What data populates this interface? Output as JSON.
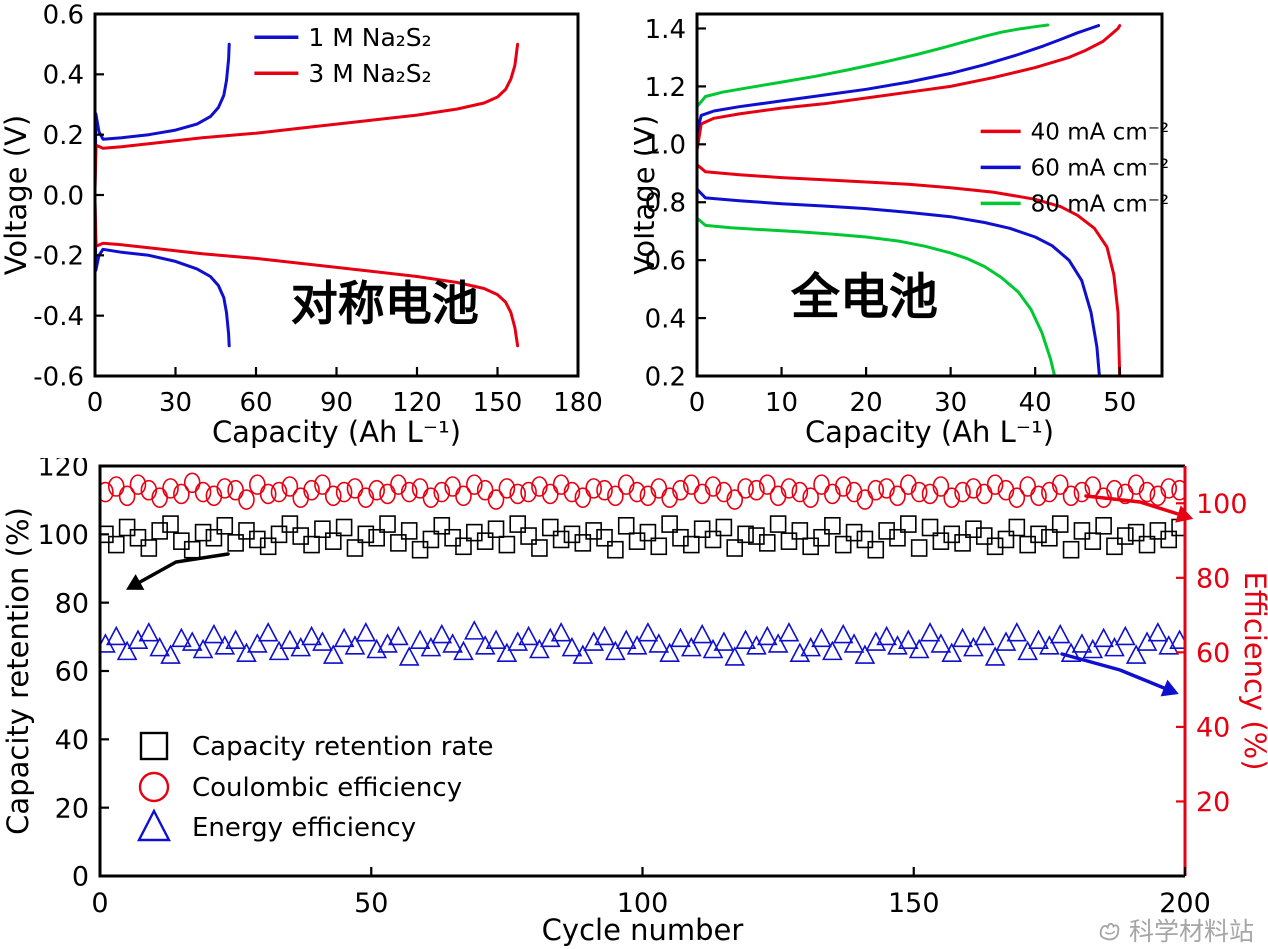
{
  "watermark": {
    "text": "科学材料站"
  },
  "colors": {
    "red": "#e60012",
    "blue": "#0f0fd0",
    "green": "#00c832",
    "black": "#000000",
    "watermark_gray": "#a6a6a6"
  },
  "chart_data": [
    {
      "id": "symmetric-cell",
      "type": "line",
      "annotation": "对称电池",
      "xlabel": "Capacity (Ah L⁻¹)",
      "ylabel": "Voltage (V)",
      "xlim": [
        0,
        180
      ],
      "xticks": [
        "0",
        "30",
        "60",
        "90",
        "120",
        "150",
        "180"
      ],
      "ylim": [
        -0.6,
        0.6
      ],
      "yticks": [
        "-0.6",
        "-0.4",
        "-0.2",
        "0.0",
        "0.2",
        "0.4",
        "0.6"
      ],
      "grid": false,
      "legend_position": "top-center",
      "legend_entries": [
        {
          "label": "1 M Na₂S₂",
          "color": "#0f0fd0"
        },
        {
          "label": "3 M Na₂S₂",
          "color": "#e60012"
        }
      ],
      "series": [
        {
          "name": "1 M Na2S2 charge",
          "color": "#0f0fd0",
          "x": [
            0,
            0.3,
            1.5,
            3,
            10,
            20,
            30,
            38,
            43,
            46,
            48,
            49,
            49.8,
            50
          ],
          "y": [
            0.02,
            0.27,
            0.21,
            0.185,
            0.19,
            0.2,
            0.215,
            0.235,
            0.26,
            0.29,
            0.33,
            0.38,
            0.45,
            0.5
          ]
        },
        {
          "name": "1 M Na2S2 discharge",
          "color": "#0f0fd0",
          "x": [
            0,
            0.3,
            1.5,
            3,
            10,
            20,
            30,
            38,
            43,
            46,
            48,
            49,
            49.8,
            50
          ],
          "y": [
            -0.02,
            -0.25,
            -0.2,
            -0.18,
            -0.19,
            -0.2,
            -0.22,
            -0.245,
            -0.27,
            -0.3,
            -0.34,
            -0.39,
            -0.46,
            -0.5
          ]
        },
        {
          "name": "3 M Na2S2 charge",
          "color": "#e60012",
          "x": [
            0,
            0.4,
            3,
            10,
            20,
            40,
            60,
            80,
            100,
            120,
            135,
            145,
            150,
            153,
            155,
            156.5,
            157.5
          ],
          "y": [
            0.02,
            0.165,
            0.155,
            0.16,
            0.17,
            0.19,
            0.205,
            0.225,
            0.245,
            0.265,
            0.285,
            0.305,
            0.325,
            0.35,
            0.385,
            0.43,
            0.5
          ]
        },
        {
          "name": "3 M Na2S2 discharge",
          "color": "#e60012",
          "x": [
            0,
            0.4,
            3,
            10,
            20,
            40,
            60,
            80,
            100,
            120,
            135,
            145,
            150,
            153,
            155,
            156.5,
            157.5
          ],
          "y": [
            -0.02,
            -0.17,
            -0.16,
            -0.165,
            -0.175,
            -0.195,
            -0.21,
            -0.23,
            -0.25,
            -0.27,
            -0.29,
            -0.31,
            -0.33,
            -0.355,
            -0.39,
            -0.44,
            -0.5
          ]
        }
      ]
    },
    {
      "id": "full-cell",
      "type": "line",
      "annotation": "全电池",
      "xlabel": "Capacity (Ah L⁻¹)",
      "ylabel": "Voltage (V)",
      "xlim": [
        0,
        55
      ],
      "xticks": [
        "0",
        "10",
        "20",
        "30",
        "40",
        "50"
      ],
      "ylim": [
        0.2,
        1.45
      ],
      "yticks": [
        "0.2",
        "0.4",
        "0.6",
        "0.8",
        "1.0",
        "1.2",
        "1.4"
      ],
      "grid": false,
      "legend_position": "middle-right",
      "legend_entries": [
        {
          "label": "40 mA cm⁻²",
          "color": "#e60012"
        },
        {
          "label": "60 mA cm⁻²",
          "color": "#0f0fd0"
        },
        {
          "label": "80 mA cm⁻²",
          "color": "#00c832"
        }
      ],
      "series": [
        {
          "name": "40 mA charge",
          "color": "#e60012",
          "x": [
            0,
            0.5,
            2,
            5,
            10,
            15,
            20,
            25,
            30,
            35,
            40,
            44,
            46,
            48,
            49,
            49.8,
            50
          ],
          "y": [
            0.98,
            1.07,
            1.09,
            1.105,
            1.125,
            1.14,
            1.16,
            1.18,
            1.2,
            1.23,
            1.265,
            1.3,
            1.325,
            1.355,
            1.38,
            1.4,
            1.41
          ]
        },
        {
          "name": "40 mA discharge",
          "color": "#e60012",
          "x": [
            0,
            1,
            5,
            10,
            15,
            20,
            25,
            30,
            35,
            40,
            43,
            45,
            47,
            48.5,
            49.3,
            49.8,
            50
          ],
          "y": [
            0.93,
            0.905,
            0.895,
            0.885,
            0.878,
            0.87,
            0.862,
            0.85,
            0.835,
            0.81,
            0.785,
            0.755,
            0.71,
            0.645,
            0.55,
            0.42,
            0.2
          ]
        },
        {
          "name": "60 mA charge",
          "color": "#0f0fd0",
          "x": [
            0,
            0.5,
            2,
            5,
            10,
            15,
            20,
            25,
            30,
            34,
            38,
            41,
            43,
            45,
            46.5,
            47.5
          ],
          "y": [
            1.04,
            1.1,
            1.115,
            1.13,
            1.15,
            1.17,
            1.19,
            1.215,
            1.245,
            1.275,
            1.31,
            1.34,
            1.362,
            1.385,
            1.4,
            1.41
          ]
        },
        {
          "name": "60 mA discharge",
          "color": "#0f0fd0",
          "x": [
            0,
            1,
            5,
            10,
            15,
            20,
            25,
            30,
            34,
            37,
            40,
            42,
            44,
            45.5,
            46.6,
            47.3,
            47.6
          ],
          "y": [
            0.845,
            0.815,
            0.805,
            0.795,
            0.787,
            0.778,
            0.765,
            0.75,
            0.73,
            0.71,
            0.68,
            0.65,
            0.6,
            0.53,
            0.42,
            0.3,
            0.2
          ]
        },
        {
          "name": "80 mA charge",
          "color": "#00c832",
          "x": [
            0,
            1,
            3,
            6,
            10,
            14,
            18,
            22,
            26,
            29,
            32,
            34,
            36,
            38,
            40,
            41.5
          ],
          "y": [
            1.13,
            1.165,
            1.18,
            1.195,
            1.215,
            1.235,
            1.258,
            1.283,
            1.31,
            1.333,
            1.357,
            1.373,
            1.387,
            1.398,
            1.406,
            1.412
          ]
        },
        {
          "name": "80 mA discharge",
          "color": "#00c832",
          "x": [
            0,
            1,
            4,
            8,
            12,
            16,
            20,
            24,
            27,
            30,
            32,
            34,
            36,
            38,
            39.5,
            40.8,
            41.8,
            42.3
          ],
          "y": [
            0.745,
            0.72,
            0.712,
            0.705,
            0.698,
            0.69,
            0.68,
            0.665,
            0.648,
            0.625,
            0.605,
            0.578,
            0.54,
            0.49,
            0.43,
            0.35,
            0.26,
            0.2
          ]
        }
      ]
    },
    {
      "id": "cycling",
      "type": "scatter",
      "dual_axis": true,
      "xlabel": "Cycle number",
      "ylabel_left": "Capacity retention (%)",
      "ylabel_right": "Efficiency (%)",
      "right_color": "#e60012",
      "xlim": [
        0,
        200
      ],
      "xticks": [
        "0",
        "50",
        "100",
        "150",
        "200"
      ],
      "ylim_left": [
        0,
        120
      ],
      "yticks_left": [
        "0",
        "20",
        "40",
        "60",
        "80",
        "100",
        "120"
      ],
      "ylim_right": [
        0,
        110
      ],
      "yticks_right": [
        "20",
        "40",
        "60",
        "80",
        "100"
      ],
      "grid": false,
      "legend_position": "lower-left",
      "legend_entries": [
        {
          "label": "Capacity retention rate",
          "marker": "square",
          "color": "#000000"
        },
        {
          "label": "Coulombic efficiency",
          "marker": "circle",
          "color": "#e60012"
        },
        {
          "label": "Energy efficiency",
          "marker": "triangle",
          "color": "#0f0fd0"
        }
      ],
      "series": [
        {
          "name": "Capacity retention rate",
          "axis": "left",
          "marker": "square",
          "color": "#000000",
          "x_start": 1,
          "x_step": 2,
          "values": [
            100,
            97,
            102,
            99,
            96,
            101,
            103,
            98,
            95.5,
            100.5,
            99,
            102.5,
            97.5,
            101,
            98.5,
            96.5,
            100,
            103,
            99.5,
            97,
            101.5,
            98,
            102,
            96,
            100,
            99,
            103,
            97.5,
            101,
            95.5,
            98.5,
            102.5,
            99,
            96.5,
            100.5,
            98,
            101.5,
            97,
            103,
            99.5,
            96,
            102,
            98.5,
            100,
            97.5,
            101,
            99,
            95.5,
            102.5,
            98,
            100.5,
            96.5,
            103,
            99,
            97,
            101.5,
            98.5,
            102,
            96,
            100,
            99.5,
            97.5,
            103,
            98,
            101,
            96.5,
            99,
            102.5,
            97,
            100.5,
            98.5,
            95.5,
            101,
            99,
            103,
            96,
            102,
            98,
            100,
            97.5,
            101.5,
            99.5,
            96.5,
            98.5,
            102,
            97,
            100,
            99,
            103,
            95.5,
            101,
            98,
            102.5,
            96.5,
            99.5,
            100.5,
            97,
            101,
            98.5,
            102
          ]
        },
        {
          "name": "Coulombic efficiency",
          "axis": "right",
          "marker": "circle",
          "color": "#e60012",
          "x_start": 1,
          "x_step": 2,
          "values": [
            103,
            104.5,
            102,
            105,
            103.5,
            101.5,
            104,
            102.5,
            105.5,
            103,
            102,
            104,
            103.5,
            101,
            105,
            102.5,
            103,
            104.5,
            101.5,
            103.5,
            105,
            102,
            103,
            104,
            101.5,
            103.5,
            102.5,
            105,
            103,
            104,
            101.5,
            103,
            104.5,
            102,
            105,
            103.5,
            101,
            104,
            102.5,
            103,
            104.5,
            102.5,
            105,
            103,
            101.5,
            104,
            103.5,
            102,
            105,
            103,
            102,
            104,
            101.5,
            103.5,
            105,
            102.5,
            104.5,
            103,
            101,
            104,
            103.5,
            105,
            102,
            104,
            103,
            101.5,
            105,
            102.5,
            104.5,
            103,
            101,
            103.5,
            104,
            102,
            105,
            103,
            102.5,
            104.5,
            101.5,
            103,
            104,
            102.5,
            105,
            103.5,
            101.5,
            104.5,
            102,
            103,
            105,
            102,
            103,
            104.5,
            101.5,
            103.5,
            102.5,
            105,
            103,
            102,
            104,
            103.5
          ]
        },
        {
          "name": "Energy efficiency",
          "axis": "right",
          "marker": "triangle",
          "color": "#0f0fd0",
          "x_start": 1,
          "x_step": 2,
          "values": [
            62,
            64,
            60,
            63,
            65,
            61,
            59,
            63.5,
            62.5,
            60.5,
            64.5,
            61.5,
            63,
            59.5,
            62,
            65,
            60,
            63,
            61,
            64,
            62.5,
            59,
            63.5,
            61.5,
            65,
            60.5,
            62,
            64,
            58.5,
            63,
            61,
            64.5,
            62,
            60,
            65.5,
            61.5,
            63,
            59.5,
            62.5,
            64,
            60.5,
            63.5,
            65,
            61,
            59,
            62.5,
            64,
            60,
            63,
            61.5,
            65,
            62,
            59.5,
            63.5,
            61,
            64.5,
            60.5,
            62.5,
            58.5,
            63,
            61.5,
            64,
            62,
            65,
            59.5,
            61,
            63.5,
            60,
            64.5,
            62,
            59,
            62.5,
            64,
            61.5,
            63,
            60.5,
            65,
            62,
            59.5,
            63.5,
            61,
            64,
            58.5,
            62.5,
            65,
            60,
            63,
            61.5,
            64.5,
            59.5,
            62,
            60.5,
            63.5,
            61,
            64,
            59,
            62.5,
            65,
            61.5,
            63
          ]
        }
      ]
    }
  ]
}
